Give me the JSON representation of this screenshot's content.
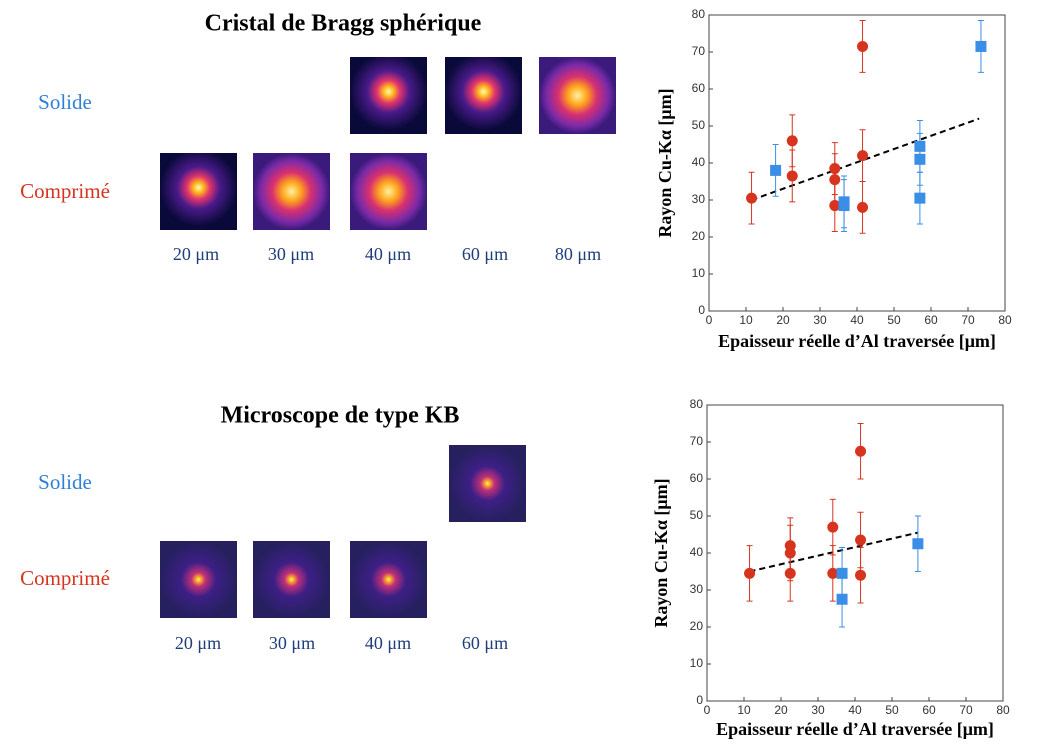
{
  "figure": {
    "sections": [
      {
        "title": "Cristal de Bragg sphérique",
        "solid_label": "Solide",
        "compressed_label": "Comprimé",
        "thicknesses": [
          "20 μm",
          "30 μm",
          "40 μm",
          "60 μm",
          "80 μm"
        ]
      },
      {
        "title": "Microscope de type KB",
        "solid_label": "Solide",
        "compressed_label": "Comprimé",
        "thicknesses": [
          "20 μm",
          "30 μm",
          "40 μm",
          "60 μm"
        ]
      }
    ]
  },
  "chart_data": [
    {
      "type": "scatter",
      "xlabel": "Epaisseur réelle d’Al traversée [μm]",
      "ylabel": "Rayon Cu-Kα [μm]",
      "xlim": [
        0,
        80
      ],
      "ylim": [
        0,
        80
      ],
      "xticks": [
        0,
        10,
        20,
        30,
        40,
        50,
        60,
        70,
        80
      ],
      "yticks": [
        0,
        10,
        20,
        30,
        40,
        50,
        60,
        70,
        80
      ],
      "series": [
        {
          "color": "#d7341f",
          "marker": "circle",
          "x": [
            11.5,
            22.5,
            22.5,
            34,
            34,
            34,
            41.5,
            41.5,
            41.5
          ],
          "values": [
            30.5,
            36.5,
            46,
            38.5,
            35.5,
            28.5,
            71.5,
            42,
            28
          ],
          "errors": [
            7,
            7,
            7,
            7,
            7,
            7,
            7,
            7,
            7
          ]
        },
        {
          "color": "#3a8ee6",
          "marker": "square",
          "x": [
            18,
            36.5,
            36.5,
            57,
            57,
            57,
            73.5
          ],
          "values": [
            38,
            29.5,
            28.5,
            44.5,
            41,
            30.5,
            71.5
          ],
          "errors": [
            7,
            7,
            7,
            7,
            7,
            7,
            7
          ]
        }
      ],
      "fit": {
        "color": "#000000",
        "x": [
          11.5,
          73
        ],
        "values": [
          30,
          52
        ]
      }
    },
    {
      "type": "scatter",
      "xlabel": "Epaisseur réelle d’Al traversée [μm]",
      "ylabel": "Rayon Cu-Kα [μm]",
      "xlim": [
        0,
        80
      ],
      "ylim": [
        0,
        80
      ],
      "xticks": [
        0,
        10,
        20,
        30,
        40,
        50,
        60,
        70,
        80
      ],
      "yticks": [
        0,
        10,
        20,
        30,
        40,
        50,
        60,
        70,
        80
      ],
      "series": [
        {
          "color": "#d7341f",
          "marker": "circle",
          "x": [
            11.5,
            22.5,
            22.5,
            22.5,
            34,
            34,
            41.5,
            41.5,
            41.5
          ],
          "values": [
            34.5,
            42,
            40,
            34.5,
            47,
            34.5,
            67.5,
            43.5,
            34
          ],
          "errors": [
            7.5,
            7.5,
            7.5,
            7.5,
            7.5,
            7.5,
            7.5,
            7.5,
            7.5
          ]
        },
        {
          "color": "#3a8ee6",
          "marker": "square",
          "x": [
            36.5,
            36.5,
            57
          ],
          "values": [
            34.5,
            27.5,
            42.5
          ],
          "errors": [
            7,
            7.5,
            7.5
          ]
        }
      ],
      "fit": {
        "color": "#000000",
        "x": [
          11.5,
          57
        ],
        "values": [
          35,
          45.5
        ]
      }
    }
  ]
}
